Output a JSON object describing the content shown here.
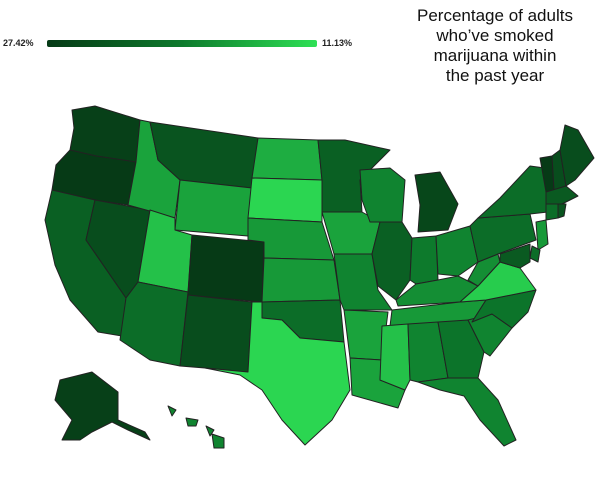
{
  "title": "Percentage of adults\nwho’ve smoked\nmarijuana within\nthe past year",
  "legend": {
    "max_label": "27.42%",
    "min_label": "11.13%",
    "colors": {
      "high": "#063a16",
      "mid": "#0d7a2c",
      "low": "#2ee055"
    }
  },
  "states": [
    {
      "id": "WA",
      "shade": 0.95
    },
    {
      "id": "OR",
      "shade": 1.0
    },
    {
      "id": "CA",
      "shade": 0.7
    },
    {
      "id": "NV",
      "shade": 0.85
    },
    {
      "id": "ID",
      "shade": 0.3
    },
    {
      "id": "MT",
      "shade": 0.8
    },
    {
      "id": "WY",
      "shade": 0.3
    },
    {
      "id": "UT",
      "shade": 0.15
    },
    {
      "id": "AZ",
      "shade": 0.6
    },
    {
      "id": "CO",
      "shade": 1.0
    },
    {
      "id": "NM",
      "shade": 0.85
    },
    {
      "id": "ND",
      "shade": 0.25
    },
    {
      "id": "SD",
      "shade": 0.05
    },
    {
      "id": "NE",
      "shade": 0.35
    },
    {
      "id": "KS",
      "shade": 0.35
    },
    {
      "id": "OK",
      "shade": 0.6
    },
    {
      "id": "TX",
      "shade": 0.05
    },
    {
      "id": "MN",
      "shade": 0.7
    },
    {
      "id": "IA",
      "shade": 0.3
    },
    {
      "id": "MO",
      "shade": 0.45
    },
    {
      "id": "AR",
      "shade": 0.3
    },
    {
      "id": "LA",
      "shade": 0.3
    },
    {
      "id": "WI",
      "shade": 0.45
    },
    {
      "id": "IL",
      "shade": 0.7
    },
    {
      "id": "MI",
      "shade": 0.9
    },
    {
      "id": "IN",
      "shade": 0.5
    },
    {
      "id": "OH",
      "shade": 0.45
    },
    {
      "id": "KY",
      "shade": 0.4
    },
    {
      "id": "TN",
      "shade": 0.35
    },
    {
      "id": "MS",
      "shade": 0.15
    },
    {
      "id": "AL",
      "shade": 0.45
    },
    {
      "id": "GA",
      "shade": 0.55
    },
    {
      "id": "FL",
      "shade": 0.45
    },
    {
      "id": "SC",
      "shade": 0.45
    },
    {
      "id": "NC",
      "shade": 0.55
    },
    {
      "id": "VA",
      "shade": 0.1
    },
    {
      "id": "WV",
      "shade": 0.4
    },
    {
      "id": "PA",
      "shade": 0.6
    },
    {
      "id": "NY",
      "shade": 0.6
    },
    {
      "id": "VT",
      "shade": 1.0
    },
    {
      "id": "NH",
      "shade": 0.85
    },
    {
      "id": "ME",
      "shade": 0.85
    },
    {
      "id": "MA",
      "shade": 0.75
    },
    {
      "id": "CT",
      "shade": 0.6
    },
    {
      "id": "RI",
      "shade": 0.8
    },
    {
      "id": "NJ",
      "shade": 0.35
    },
    {
      "id": "DE",
      "shade": 0.6
    },
    {
      "id": "MD",
      "shade": 0.75
    },
    {
      "id": "AK",
      "shade": 0.95
    },
    {
      "id": "HI",
      "shade": 0.45
    }
  ]
}
